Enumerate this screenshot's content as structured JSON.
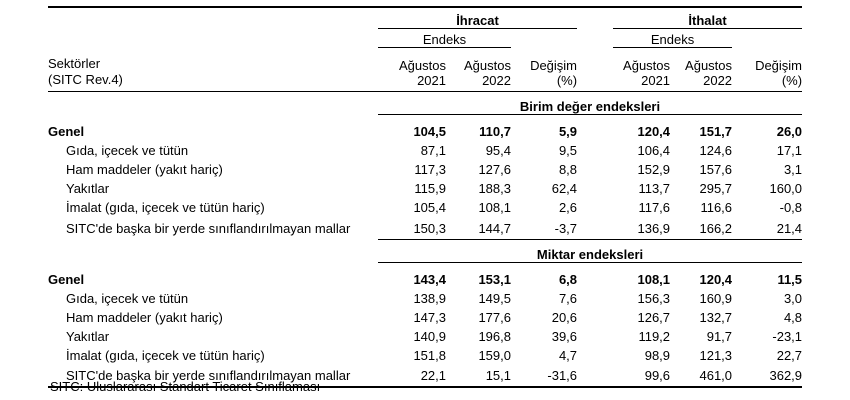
{
  "table": {
    "corner": {
      "line1": "Sektörler",
      "line2": "(SITC Rev.4)"
    },
    "groups": [
      {
        "title": "İhracat",
        "endeks": "Endeks",
        "columns": [
          {
            "l1": "Ağustos",
            "l2": "2021"
          },
          {
            "l1": "Ağustos",
            "l2": "2022"
          },
          {
            "l1": "Değişim",
            "l2": "(%)"
          }
        ]
      },
      {
        "title": "İthalat",
        "endeks": "Endeks",
        "columns": [
          {
            "l1": "Ağustos",
            "l2": "2021"
          },
          {
            "l1": "Ağustos",
            "l2": "2022"
          },
          {
            "l1": "Değişim",
            "l2": "(%)"
          }
        ]
      }
    ],
    "sections": [
      {
        "title": "Birim değer endeksleri",
        "rows": [
          {
            "label": "Genel",
            "bold": true,
            "indent": false,
            "values": [
              "104,5",
              "110,7",
              "5,9",
              "120,4",
              "151,7",
              "26,0"
            ]
          },
          {
            "label": "Gıda, içecek ve tütün",
            "bold": false,
            "indent": true,
            "values": [
              "87,1",
              "95,4",
              "9,5",
              "106,4",
              "124,6",
              "17,1"
            ]
          },
          {
            "label": "Ham maddeler (yakıt hariç)",
            "bold": false,
            "indent": true,
            "values": [
              "117,3",
              "127,6",
              "8,8",
              "152,9",
              "157,6",
              "3,1"
            ]
          },
          {
            "label": "Yakıtlar",
            "bold": false,
            "indent": true,
            "values": [
              "115,9",
              "188,3",
              "62,4",
              "113,7",
              "295,7",
              "160,0"
            ]
          },
          {
            "label": "İmalat (gıda, içecek ve tütün hariç)",
            "bold": false,
            "indent": true,
            "values": [
              "105,4",
              "108,1",
              "2,6",
              "117,6",
              "116,6",
              "-0,8"
            ]
          },
          {
            "label": "SITC'de başka bir yerde sınıflandırılmayan mallar",
            "bold": false,
            "indent": true,
            "values": [
              "150,3",
              "144,7",
              "-3,7",
              "136,9",
              "166,2",
              "21,4"
            ]
          }
        ]
      },
      {
        "title": "Miktar endeksleri",
        "rows": [
          {
            "label": "Genel",
            "bold": true,
            "indent": false,
            "values": [
              "143,4",
              "153,1",
              "6,8",
              "108,1",
              "120,4",
              "11,5"
            ]
          },
          {
            "label": "Gıda, içecek ve tütün",
            "bold": false,
            "indent": true,
            "values": [
              "138,9",
              "149,5",
              "7,6",
              "156,3",
              "160,9",
              "3,0"
            ]
          },
          {
            "label": "Ham maddeler (yakıt hariç)",
            "bold": false,
            "indent": true,
            "values": [
              "147,3",
              "177,6",
              "20,6",
              "126,7",
              "132,7",
              "4,8"
            ]
          },
          {
            "label": "Yakıtlar",
            "bold": false,
            "indent": true,
            "values": [
              "140,9",
              "196,8",
              "39,6",
              "119,2",
              "91,7",
              "-23,1"
            ]
          },
          {
            "label": "İmalat (gıda, içecek ve tütün hariç)",
            "bold": false,
            "indent": true,
            "values": [
              "151,8",
              "159,0",
              "4,7",
              "98,9",
              "121,3",
              "22,7"
            ]
          },
          {
            "label": "SITC'de başka bir yerde sınıflandırılmayan mallar",
            "bold": false,
            "indent": true,
            "values": [
              "22,1",
              "15,1",
              "-31,6",
              "99,6",
              "461,0",
              "362,9"
            ]
          }
        ]
      }
    ],
    "footnote": "SITC: Uluslararası Standart Ticaret Sınıflaması"
  },
  "chart_data": {
    "type": "table",
    "row_header": "Sektörler (SITC Rev.4)",
    "column_groups": [
      {
        "name": "İhracat",
        "sub_header": "Endeks",
        "columns": [
          "Ağustos 2021",
          "Ağustos 2022",
          "Değişim (%)"
        ]
      },
      {
        "name": "İthalat",
        "sub_header": "Endeks",
        "columns": [
          "Ağustos 2021",
          "Ağustos 2022",
          "Değişim (%)"
        ]
      }
    ],
    "sections": [
      {
        "title": "Birim değer endeksleri",
        "rows": [
          {
            "label": "Genel",
            "ihracat": [
              104.5,
              110.7,
              5.9
            ],
            "ithalat": [
              120.4,
              151.7,
              26.0
            ]
          },
          {
            "label": "Gıda, içecek ve tütün",
            "ihracat": [
              87.1,
              95.4,
              9.5
            ],
            "ithalat": [
              106.4,
              124.6,
              17.1
            ]
          },
          {
            "label": "Ham maddeler (yakıt hariç)",
            "ihracat": [
              117.3,
              127.6,
              8.8
            ],
            "ithalat": [
              152.9,
              157.6,
              3.1
            ]
          },
          {
            "label": "Yakıtlar",
            "ihracat": [
              115.9,
              188.3,
              62.4
            ],
            "ithalat": [
              113.7,
              295.7,
              160.0
            ]
          },
          {
            "label": "İmalat (gıda, içecek ve tütün hariç)",
            "ihracat": [
              105.4,
              108.1,
              2.6
            ],
            "ithalat": [
              117.6,
              116.6,
              -0.8
            ]
          },
          {
            "label": "SITC'de başka bir yerde sınıflandırılmayan mallar",
            "ihracat": [
              150.3,
              144.7,
              -3.7
            ],
            "ithalat": [
              136.9,
              166.2,
              21.4
            ]
          }
        ]
      },
      {
        "title": "Miktar endeksleri",
        "rows": [
          {
            "label": "Genel",
            "ihracat": [
              143.4,
              153.1,
              6.8
            ],
            "ithalat": [
              108.1,
              120.4,
              11.5
            ]
          },
          {
            "label": "Gıda, içecek ve tütün",
            "ihracat": [
              138.9,
              149.5,
              7.6
            ],
            "ithalat": [
              156.3,
              160.9,
              3.0
            ]
          },
          {
            "label": "Ham maddeler (yakıt hariç)",
            "ihracat": [
              147.3,
              177.6,
              20.6
            ],
            "ithalat": [
              126.7,
              132.7,
              4.8
            ]
          },
          {
            "label": "Yakıtlar",
            "ihracat": [
              140.9,
              196.8,
              39.6
            ],
            "ithalat": [
              119.2,
              91.7,
              -23.1
            ]
          },
          {
            "label": "İmalat (gıda, içecek ve tütün hariç)",
            "ihracat": [
              151.8,
              159.0,
              4.7
            ],
            "ithalat": [
              98.9,
              121.3,
              22.7
            ]
          },
          {
            "label": "SITC'de başka bir yerde sınıflandırılmayan mallar",
            "ihracat": [
              22.1,
              15.1,
              -31.6
            ],
            "ithalat": [
              99.6,
              461.0,
              362.9
            ]
          }
        ]
      }
    ],
    "footnote": "SITC: Uluslararası Standart Ticaret Sınıflaması"
  }
}
